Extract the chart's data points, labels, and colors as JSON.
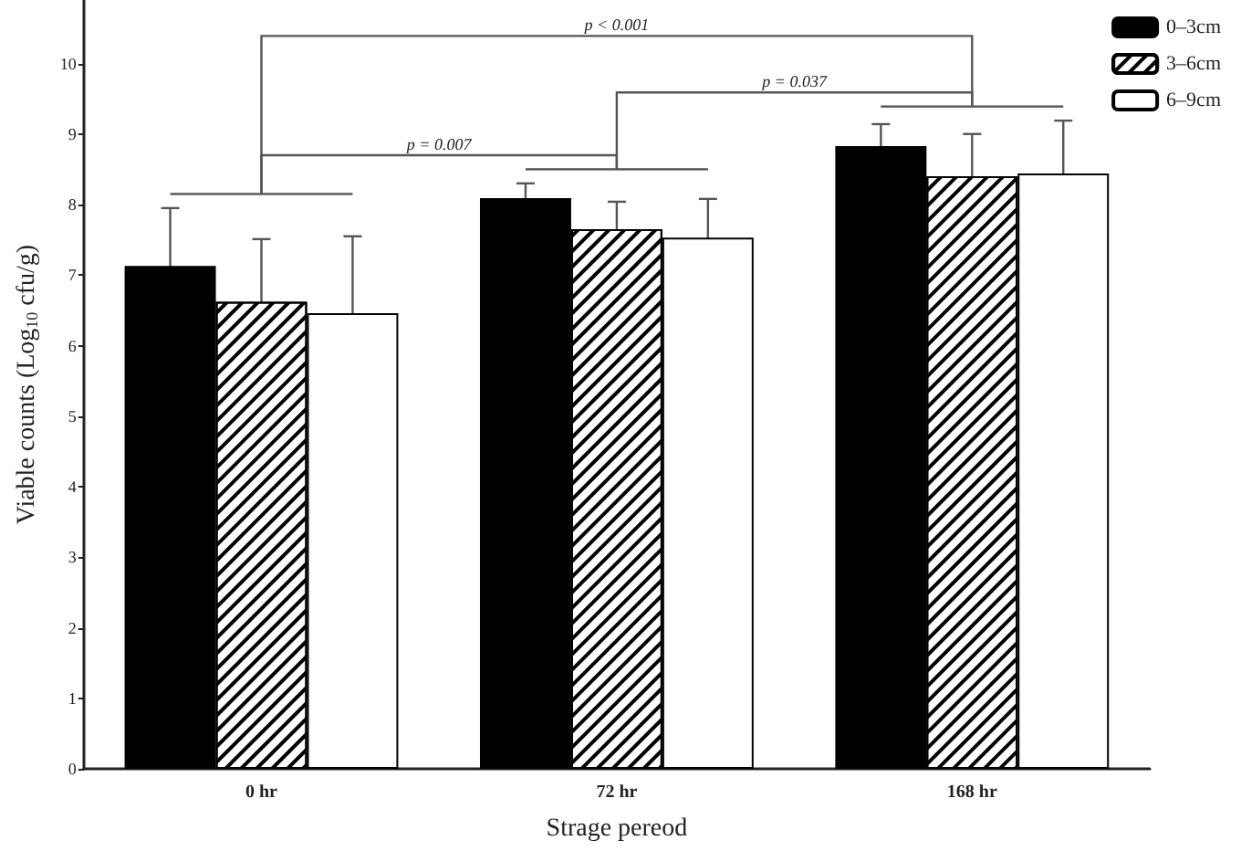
{
  "chart_data": {
    "type": "bar",
    "xlabel": "Strage pereod",
    "ylabel": "Viable counts (Log$_{10}$ cfu/g)",
    "categories": [
      "0 hr",
      "72 hr",
      "168 hr"
    ],
    "series": [
      {
        "name": "0–3cm",
        "color": "#000000",
        "values": [
          7.13,
          8.09,
          8.83
        ],
        "errors": [
          0.82,
          0.21,
          0.31
        ]
      },
      {
        "name": "3–6cm",
        "color": "#ffffff",
        "values": [
          6.62,
          7.65,
          8.4
        ],
        "errors": [
          0.89,
          0.39,
          0.6
        ]
      },
      {
        "name": "6–9cm",
        "color": "#ffffff",
        "values": [
          6.46,
          7.53,
          8.44
        ],
        "errors": [
          1.09,
          0.55,
          0.75
        ]
      }
    ],
    "ylim": [
      0,
      10.9
    ],
    "yticks": [
      0,
      1,
      2,
      3,
      4,
      5,
      6,
      7,
      8,
      9,
      10
    ],
    "annotations": [
      "p < 0.001",
      "p = 0.037",
      "p = 0.007"
    ],
    "legend": "top right",
    "grid": false
  }
}
